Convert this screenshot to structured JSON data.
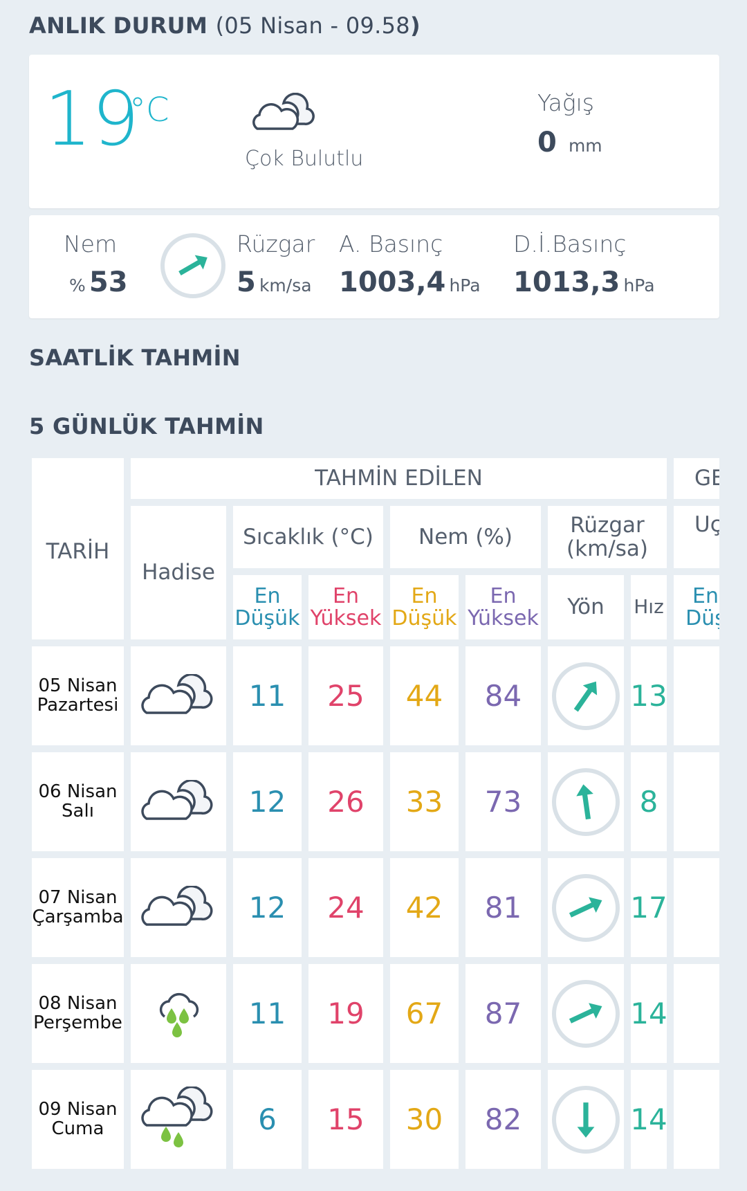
{
  "current": {
    "title": "ANLIK DURUM",
    "title_paren_open": "(",
    "datetime": "05 Nisan - 09.58",
    "title_paren_close": ")",
    "temperature": "19",
    "temp_unit": "°C",
    "condition": "Çok Bulutlu",
    "condition_icon": "cloudy-icon",
    "precip_label": "Yağış",
    "precip_value": "0",
    "precip_unit": "mm",
    "humidity_label": "Nem",
    "humidity_prefix": "%",
    "humidity_value": "53",
    "wind_label": "Rüzgar",
    "wind_value": "5",
    "wind_unit": "km/sa",
    "wind_arrow_deg": 60,
    "pressure_label": "A. Basınç",
    "pressure_value": "1003,4",
    "pressure_unit": "hPa",
    "sea_pressure_label": "D.İ.Basınç",
    "sea_pressure_value": "1013,3",
    "sea_pressure_unit": "hPa"
  },
  "hourly": {
    "title": "SAATLİK TAHMİN"
  },
  "daily": {
    "title": "5 GÜNLÜK TAHMİN",
    "headers": {
      "date": "TARİH",
      "group": "TAHMİN EDİLEN",
      "group2": "GE",
      "event": "Hadise",
      "temp": "Sıcaklık (°C)",
      "hum": "Nem (%)",
      "wind": "Rüzgar (km/sa)",
      "col2": "Uç",
      "min": "En Düşük",
      "max": "En Yüksek",
      "dir": "Yön",
      "speed": "Hız",
      "col2_sub": "En Düş"
    },
    "rows": [
      {
        "date": "05 Nisan",
        "day": "Pazartesi",
        "icon": "cloudy-icon",
        "tmin": "11",
        "tmax": "25",
        "hmin": "44",
        "hmax": "84",
        "wind_deg": 35,
        "speed": "13"
      },
      {
        "date": "06 Nisan",
        "day": "Salı",
        "icon": "cloudy-icon",
        "tmin": "12",
        "tmax": "26",
        "hmin": "33",
        "hmax": "73",
        "wind_deg": -8,
        "speed": "8"
      },
      {
        "date": "07 Nisan",
        "day": "Çarşamba",
        "icon": "cloudy-icon",
        "tmin": "12",
        "tmax": "24",
        "hmin": "42",
        "hmax": "81",
        "wind_deg": 65,
        "speed": "17"
      },
      {
        "date": "08 Nisan",
        "day": "Perşembe",
        "icon": "rain-icon",
        "tmin": "11",
        "tmax": "19",
        "hmin": "67",
        "hmax": "87",
        "wind_deg": 65,
        "speed": "14"
      },
      {
        "date": "09 Nisan",
        "day": "Cuma",
        "icon": "cloudy-rain-icon",
        "tmin": "6",
        "tmax": "15",
        "hmin": "30",
        "hmax": "82",
        "wind_deg": 180,
        "speed": "14"
      }
    ]
  },
  "colors": {
    "temp": "#1fb5cc",
    "min_temp": "#2a8fb0",
    "max_temp": "#e0436a",
    "min_hum": "#e3a816",
    "max_hum": "#7b68b0",
    "wind": "#2bb39a",
    "background": "#e8eef3"
  }
}
